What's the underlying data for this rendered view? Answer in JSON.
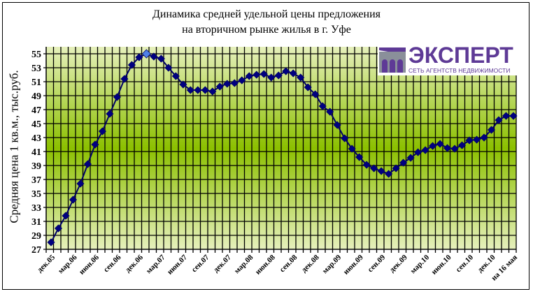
{
  "chart_data": {
    "type": "line",
    "title": [
      "Динамика средней удельной цены предложения",
      "на вторичном рынке жилья в г. Уфе"
    ],
    "ylabel": "Средняя цена 1 кв.м., тыс.руб.",
    "xlabel": "",
    "ylim": [
      27,
      56
    ],
    "yticks": [
      27,
      29,
      31,
      33,
      35,
      37,
      39,
      41,
      43,
      45,
      47,
      49,
      51,
      53,
      55
    ],
    "grid": true,
    "legend": "none",
    "x_tick_labels": [
      "дек.05",
      "мар.06",
      "июн.06",
      "сен.06",
      "дек.06",
      "мар.07",
      "июн.07",
      "сен.07",
      "дек.07",
      "мар.08",
      "июн.08",
      "сен.08",
      "дек.08",
      "мар.09",
      "июн.09",
      "сен.09",
      "дек.09",
      "мар.10",
      "июн.10",
      "сен.10",
      "дек.10",
      "на 16 мая"
    ],
    "x_tick_every": 3,
    "values": [
      28.0,
      30.0,
      31.8,
      34.1,
      36.4,
      39.2,
      42.0,
      43.9,
      46.4,
      48.8,
      51.4,
      53.4,
      54.5,
      55.0,
      54.6,
      54.3,
      53.0,
      51.8,
      50.6,
      49.8,
      49.8,
      49.8,
      49.6,
      50.3,
      50.7,
      50.8,
      51.2,
      51.8,
      52.0,
      52.1,
      51.6,
      51.9,
      52.5,
      52.2,
      51.6,
      50.2,
      49.2,
      47.5,
      46.7,
      44.8,
      42.9,
      41.4,
      40.2,
      39.1,
      38.6,
      38.2,
      37.8,
      38.6,
      39.4,
      40.1,
      40.9,
      41.2,
      41.8,
      42.1,
      41.5,
      41.4,
      41.9,
      42.6,
      42.7,
      43.0,
      44.1,
      45.5,
      46.1,
      46.1
    ],
    "highlight_index": 13,
    "colors": {
      "line": "#000066",
      "marker": "#000080",
      "highlight": "#4f81e8",
      "grid": "#000000",
      "bg_light": "#e4efb8",
      "bg_dark": "#8cc000"
    }
  },
  "logo": {
    "word": "ЭКСПЕРТ",
    "sub": "СЕТЬ АГЕНТСТВ НЕДВИЖИМОСТИ",
    "color": "#5e3a96"
  }
}
